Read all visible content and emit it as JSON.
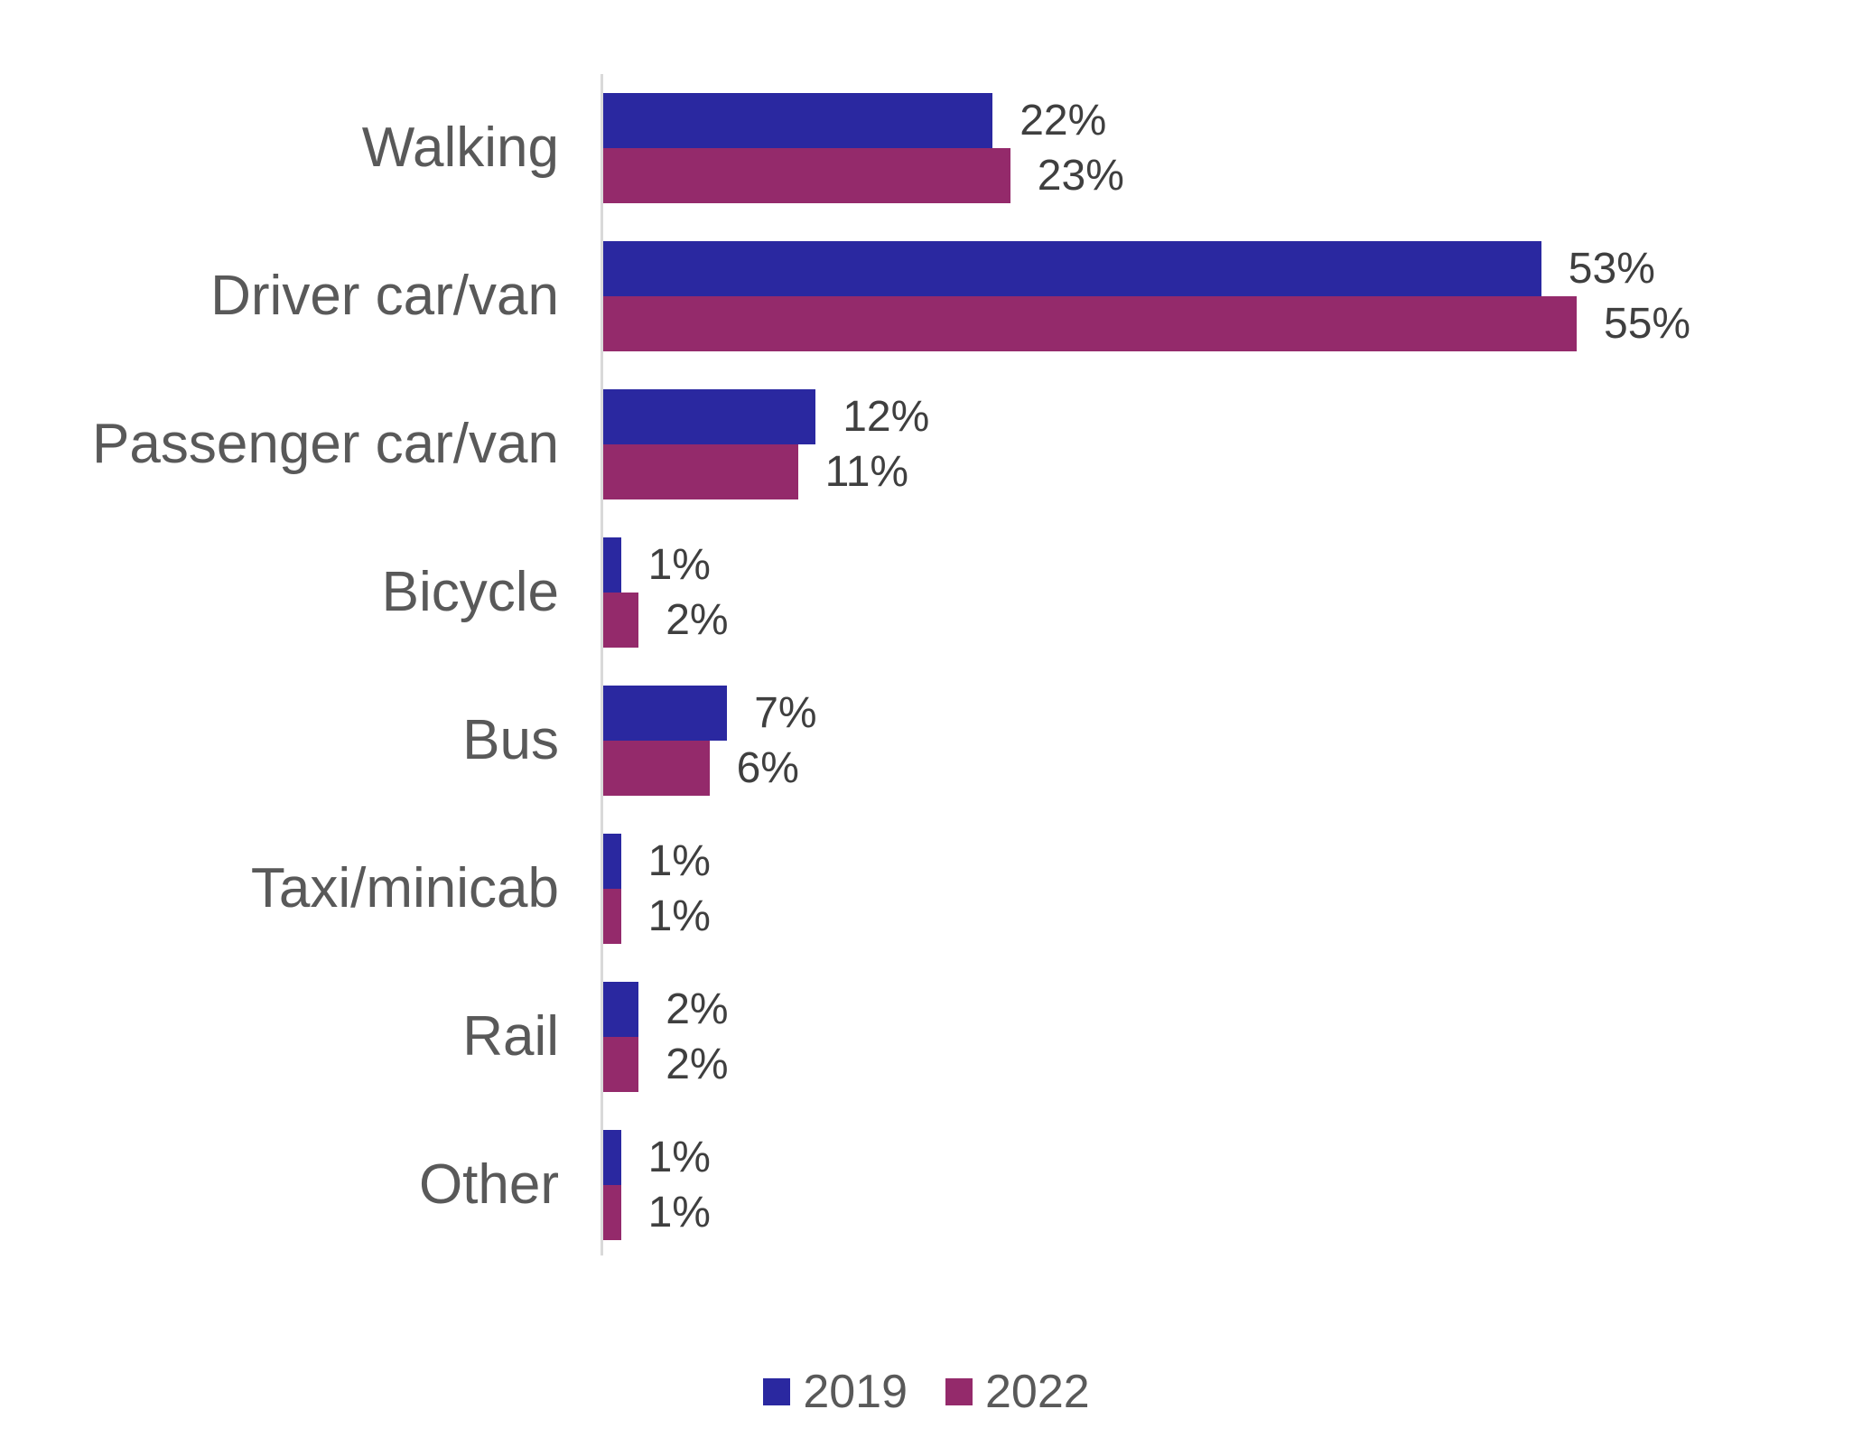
{
  "chart_data": {
    "type": "bar",
    "orientation": "horizontal",
    "title": "",
    "xlabel": "",
    "ylabel": "",
    "categories": [
      "Walking",
      "Driver car/van",
      "Passenger car/van",
      "Bicycle",
      "Bus",
      "Taxi/minicab",
      "Rail",
      "Other"
    ],
    "series": [
      {
        "name": "2019",
        "color": "#2A28A0",
        "values": [
          22,
          53,
          12,
          1,
          7,
          1,
          2,
          1
        ],
        "labels": [
          "22%",
          "53%",
          "12%",
          "1%",
          "7%",
          "1%",
          "2%",
          "1%"
        ]
      },
      {
        "name": "2022",
        "color": "#942A6B",
        "values": [
          23,
          55,
          11,
          2,
          6,
          1,
          2,
          1
        ],
        "labels": [
          "23%",
          "55%",
          "11%",
          "2%",
          "6%",
          "1%",
          "2%",
          "1%"
        ]
      }
    ],
    "xlim": [
      0,
      70
    ],
    "grid": false,
    "legend_position": "bottom",
    "axis_line_color": "#D9D9D9",
    "category_label_color": "#595959",
    "value_label_color": "#3F3F3F"
  }
}
